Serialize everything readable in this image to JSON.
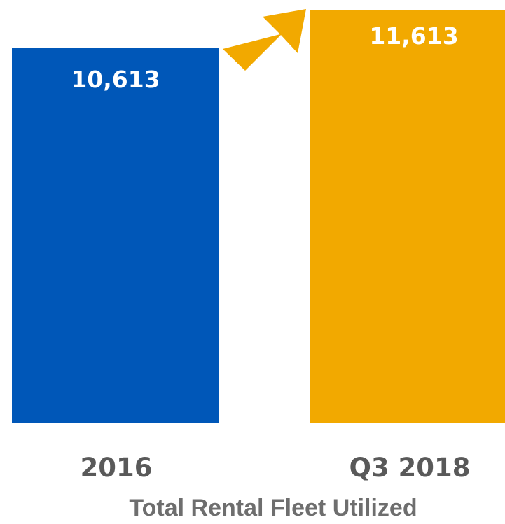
{
  "chart_data": {
    "type": "bar",
    "title": "Total Rental Fleet Utilized",
    "categories": [
      "2016",
      "Q3 2018"
    ],
    "values": [
      10613,
      11613
    ],
    "value_labels": [
      "10,613",
      "11,613"
    ],
    "colors": [
      "#0057B8",
      "#F2A900"
    ],
    "arrow_color": "#F2A900",
    "xlabel": "",
    "ylabel": "",
    "grid": false,
    "legend": "none"
  }
}
